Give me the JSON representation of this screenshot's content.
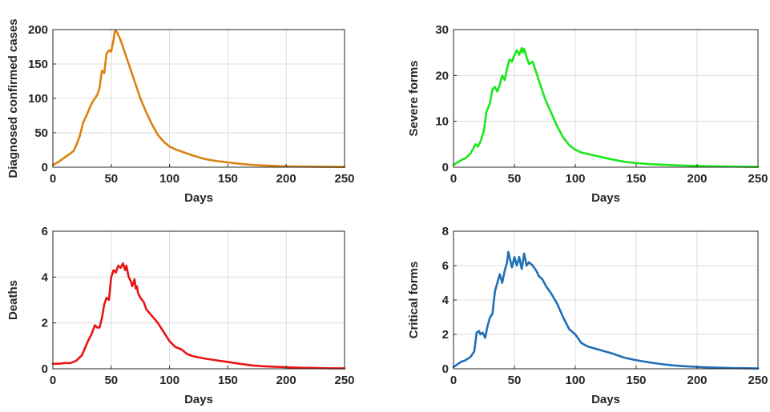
{
  "chart_data": [
    {
      "type": "line",
      "ylabel": "Diagnosed confirmed cases",
      "xlabel": "Days",
      "xlim": [
        0,
        250
      ],
      "ylim": [
        0,
        200
      ],
      "xticks": [
        0,
        50,
        100,
        150,
        200,
        250
      ],
      "yticks": [
        0,
        50,
        100,
        150,
        200
      ],
      "grid": true,
      "color": "#D9820F",
      "series": [
        {
          "x": [
            0,
            5,
            10,
            15,
            18,
            20,
            23,
            26,
            28,
            30,
            32,
            34,
            36,
            38,
            40,
            42,
            44,
            46,
            48,
            50,
            52,
            53,
            54,
            55,
            58,
            62,
            65,
            70,
            75,
            80,
            85,
            90,
            95,
            100,
            105,
            110,
            115,
            120,
            130,
            140,
            150,
            160,
            170,
            180,
            190,
            200,
            210,
            220,
            230,
            240,
            250
          ],
          "y": [
            3,
            8,
            14,
            20,
            24,
            32,
            45,
            65,
            72,
            80,
            88,
            95,
            100,
            105,
            115,
            140,
            137,
            165,
            170,
            168,
            185,
            197,
            198,
            196,
            185,
            165,
            150,
            125,
            100,
            80,
            62,
            47,
            37,
            30,
            26,
            23,
            20,
            17,
            12,
            9,
            7,
            5,
            3.5,
            2.5,
            1.8,
            1.3,
            1,
            0.8,
            0.6,
            0.5,
            0.4
          ]
        }
      ]
    },
    {
      "type": "line",
      "ylabel": "Severe forms",
      "xlabel": "Days",
      "xlim": [
        0,
        250
      ],
      "ylim": [
        0,
        30
      ],
      "xticks": [
        0,
        50,
        100,
        150,
        200,
        250
      ],
      "yticks": [
        0,
        10,
        20,
        30
      ],
      "grid": true,
      "color": "#1AE81A",
      "series": [
        {
          "x": [
            0,
            3,
            6,
            10,
            14,
            18,
            20,
            22,
            25,
            27,
            30,
            32,
            34,
            36,
            38,
            40,
            42,
            44,
            46,
            48,
            50,
            52,
            54,
            56,
            57,
            58,
            60,
            62,
            65,
            70,
            75,
            80,
            85,
            90,
            95,
            100,
            105,
            110,
            115,
            120,
            130,
            140,
            150,
            160,
            170,
            180,
            190,
            200,
            210,
            220,
            230,
            240,
            250
          ],
          "y": [
            0.5,
            1.0,
            1.5,
            2.0,
            3.0,
            5.0,
            4.5,
            5.5,
            8,
            12,
            14,
            17,
            17.5,
            16.5,
            18,
            20,
            19,
            21.5,
            23.5,
            23,
            24.5,
            25.5,
            24.5,
            26,
            25,
            25.8,
            24,
            22.5,
            23,
            19,
            15,
            12,
            9,
            6.5,
            4.8,
            3.8,
            3.2,
            2.9,
            2.6,
            2.3,
            1.7,
            1.2,
            0.9,
            0.7,
            0.55,
            0.45,
            0.35,
            0.28,
            0.22,
            0.17,
            0.13,
            0.1,
            0.08
          ]
        }
      ]
    },
    {
      "type": "line",
      "ylabel": "Deaths",
      "xlabel": "Days",
      "xlim": [
        0,
        250
      ],
      "ylim": [
        0,
        6
      ],
      "xticks": [
        0,
        50,
        100,
        150,
        200,
        250
      ],
      "yticks": [
        0,
        2,
        4,
        6
      ],
      "grid": true,
      "color": "#E81414",
      "series": [
        {
          "x": [
            0,
            5,
            10,
            15,
            20,
            25,
            30,
            33,
            36,
            38,
            40,
            42,
            44,
            46,
            48,
            50,
            52,
            54,
            56,
            58,
            60,
            62,
            63,
            65,
            67,
            68,
            70,
            71,
            72,
            73,
            75,
            78,
            80,
            85,
            90,
            95,
            100,
            105,
            110,
            115,
            120,
            130,
            140,
            150,
            160,
            170,
            180,
            190,
            200,
            210,
            220,
            230,
            240,
            250
          ],
          "y": [
            0.22,
            0.22,
            0.25,
            0.25,
            0.35,
            0.6,
            1.2,
            1.5,
            1.9,
            1.8,
            1.8,
            2.2,
            2.8,
            3.1,
            3.0,
            4.0,
            4.3,
            4.2,
            4.5,
            4.4,
            4.6,
            4.3,
            4.5,
            4.0,
            3.8,
            3.6,
            3.9,
            3.5,
            3.6,
            3.3,
            3.1,
            2.9,
            2.6,
            2.3,
            2.0,
            1.6,
            1.2,
            0.95,
            0.85,
            0.65,
            0.55,
            0.45,
            0.37,
            0.3,
            0.22,
            0.15,
            0.11,
            0.09,
            0.07,
            0.05,
            0.04,
            0.03,
            0.02,
            0.02
          ]
        }
      ]
    },
    {
      "type": "line",
      "ylabel": "Critical forms",
      "xlabel": "Days",
      "xlim": [
        0,
        250
      ],
      "ylim": [
        0,
        8
      ],
      "xticks": [
        0,
        50,
        100,
        150,
        200,
        250
      ],
      "yticks": [
        0,
        2,
        4,
        6,
        8
      ],
      "grid": true,
      "color": "#1F6FB5",
      "series": [
        {
          "x": [
            0,
            3,
            6,
            10,
            14,
            17,
            19,
            21,
            22,
            24,
            26,
            28,
            30,
            32,
            34,
            36,
            38,
            40,
            42,
            44,
            45,
            46,
            48,
            50,
            52,
            54,
            56,
            58,
            60,
            62,
            65,
            68,
            70,
            73,
            76,
            80,
            85,
            90,
            95,
            100,
            105,
            110,
            115,
            120,
            130,
            140,
            150,
            160,
            170,
            180,
            190,
            200,
            210,
            220,
            230,
            240,
            250
          ],
          "y": [
            0.1,
            0.25,
            0.4,
            0.5,
            0.7,
            1.0,
            2.1,
            2.2,
            2.0,
            2.1,
            1.8,
            2.5,
            3.0,
            3.2,
            4.5,
            5.0,
            5.5,
            5.0,
            5.7,
            6.2,
            6.8,
            6.5,
            5.9,
            6.5,
            6.0,
            6.5,
            5.8,
            6.7,
            6.0,
            6.2,
            6.0,
            5.7,
            5.4,
            5.2,
            4.8,
            4.4,
            3.8,
            3.0,
            2.3,
            2.0,
            1.5,
            1.3,
            1.2,
            1.1,
            0.9,
            0.65,
            0.5,
            0.38,
            0.28,
            0.2,
            0.15,
            0.11,
            0.08,
            0.06,
            0.04,
            0.03,
            0.02
          ]
        }
      ]
    }
  ]
}
